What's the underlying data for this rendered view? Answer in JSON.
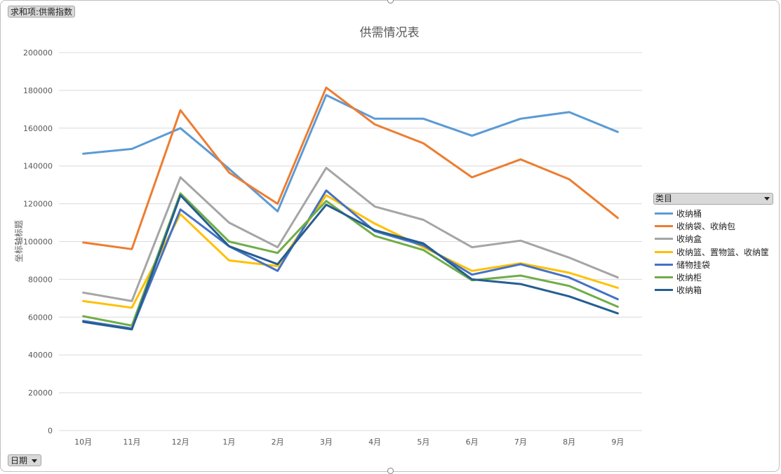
{
  "pivot": {
    "value_field": "求和项:供需指数",
    "axis_field": "日期",
    "legend_field": "类目"
  },
  "chart_data": {
    "type": "line",
    "title": "供需情况表",
    "ylabel": "坐标轴标题",
    "xlabel": "",
    "ylim": [
      0,
      200000
    ],
    "yticks": [
      0,
      20000,
      40000,
      60000,
      80000,
      100000,
      120000,
      140000,
      160000,
      180000,
      200000
    ],
    "grid": true,
    "legend_position": "right",
    "categories": [
      "10月",
      "11月",
      "12月",
      "1月",
      "2月",
      "3月",
      "4月",
      "5月",
      "6月",
      "7月",
      "8月",
      "9月"
    ],
    "series": [
      {
        "name": "收纳桶",
        "color": "#5b9bd5",
        "values": [
          146500,
          149000,
          160000,
          138500,
          116000,
          177500,
          165000,
          165000,
          156000,
          165000,
          168500,
          158000
        ]
      },
      {
        "name": "收纳袋、收纳包",
        "color": "#ed7d31",
        "values": [
          99500,
          96000,
          169500,
          136500,
          120000,
          181500,
          162000,
          152000,
          134000,
          143500,
          133000,
          112500
        ]
      },
      {
        "name": "收纳盒",
        "color": "#a5a5a5",
        "values": [
          73000,
          68500,
          134000,
          110000,
          97000,
          139000,
          118500,
          111500,
          97000,
          100500,
          91500,
          81000
        ]
      },
      {
        "name": "收纳篮、置物篮、收纳筐",
        "color": "#ffc000",
        "values": [
          68500,
          65000,
          114500,
          90000,
          87000,
          124500,
          109500,
          97000,
          84500,
          88500,
          83500,
          75500
        ]
      },
      {
        "name": "储物挂袋",
        "color": "#4472c4",
        "values": [
          58000,
          54000,
          117000,
          97500,
          84500,
          127000,
          105500,
          98000,
          82500,
          88000,
          81000,
          69500
        ]
      },
      {
        "name": "收纳柜",
        "color": "#70ad47",
        "values": [
          60500,
          55500,
          125500,
          100000,
          94000,
          121500,
          103000,
          95500,
          79500,
          82000,
          76500,
          65500
        ]
      },
      {
        "name": "收纳箱",
        "color": "#255e91",
        "values": [
          57500,
          53500,
          124500,
          97500,
          88000,
          119500,
          106000,
          99000,
          80000,
          77500,
          71000,
          62000
        ]
      }
    ]
  }
}
